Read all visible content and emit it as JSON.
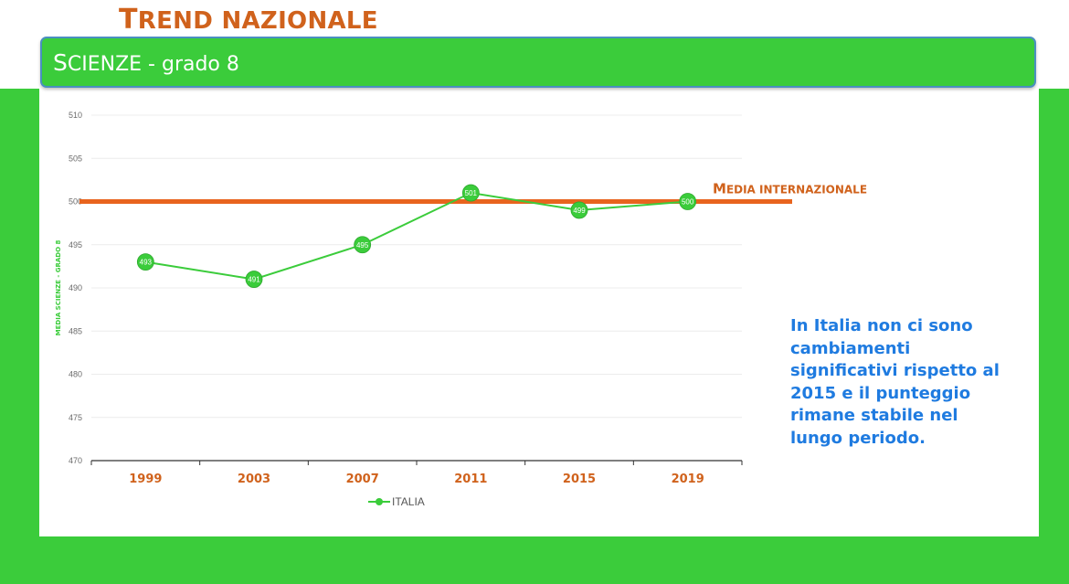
{
  "header": {
    "title_first": "T",
    "title_rest": "REND NAZIONALE",
    "subject_first": "S",
    "subject_rest": "CIENZE - grado 8"
  },
  "note": "In Italia non ci sono cambiamenti significativi rispetto al 2015 e il punteggio rimane stabile nel lungo periodo.",
  "colors": {
    "band": "#3bcc3b",
    "series": "#3bcc3b",
    "reference_line": "#e8641e",
    "tick_label": "#d0621c",
    "note_text": "#1f7be0"
  },
  "chart_data": {
    "type": "line",
    "categories": [
      "1999",
      "2003",
      "2007",
      "2011",
      "2015",
      "2019"
    ],
    "series": [
      {
        "name": "ITALIA",
        "values": [
          493,
          491,
          495,
          501,
          499,
          500
        ]
      }
    ],
    "reference_line": {
      "label_first": "M",
      "label_rest": "EDIA INTERNAZIONALE",
      "value": 500
    },
    "ylabel": "MEDIA SCIENZE - GRADO 8",
    "ylim": [
      470,
      510
    ],
    "yticks": [
      470,
      475,
      480,
      485,
      490,
      495,
      500,
      505,
      510
    ],
    "grid": true,
    "legend": "bottom-center",
    "data_labels": true
  }
}
